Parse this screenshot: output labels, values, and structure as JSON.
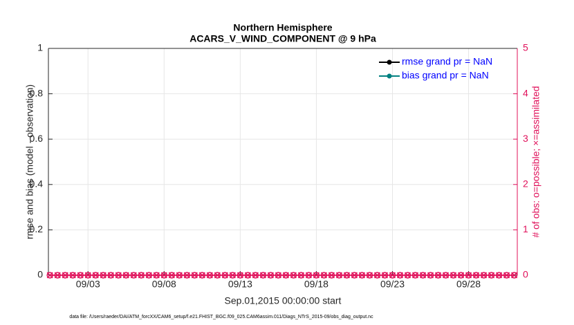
{
  "chart_data": {
    "type": "line",
    "title": "Northern Hemisphere",
    "subtitle": "ACARS_V_WIND_COMPONENT @ 9 hPa",
    "xlabel": "Sep.01,2015 00:00:00 start",
    "ylabel": "rmse and bias (model - observation)",
    "y2label": "# of obs: o=possible; ×=assimilated",
    "note": "data file: /Users/raeder/DAI/ATM_forcXX/CAM6_setup/f.e21.FHIST_BGC.f09_025.CAM6assim.011/Diags_NTrS_2015-09/obs_diag_output.nc",
    "x": [
      0.5,
      1,
      1.5,
      2,
      2.5,
      3,
      3.5,
      4,
      4.5,
      5,
      5.5,
      6,
      6.5,
      7,
      7.5,
      8,
      8.5,
      9,
      9.5,
      10,
      10.5,
      11,
      11.5,
      12,
      12.5,
      13,
      13.5,
      14,
      14.5,
      15,
      15.5,
      16,
      16.5,
      17,
      17.5,
      18,
      18.5,
      19,
      19.5,
      20,
      20.5,
      21,
      21.5,
      22,
      22.5,
      23,
      23.5,
      24,
      24.5,
      25,
      25.5,
      26,
      26.5,
      27,
      27.5,
      28,
      28.5,
      29,
      29.5,
      30,
      30.5,
      31
    ],
    "xlim": [
      0.4,
      31.2
    ],
    "xticks": [
      {
        "value": 3,
        "label": "09/03"
      },
      {
        "value": 8,
        "label": "09/08"
      },
      {
        "value": 13,
        "label": "09/13"
      },
      {
        "value": 18,
        "label": "09/18"
      },
      {
        "value": 23,
        "label": "09/23"
      },
      {
        "value": 28,
        "label": "09/28"
      }
    ],
    "ylim": [
      0,
      1
    ],
    "yticks": [
      0,
      0.2,
      0.4,
      0.6,
      0.8,
      1
    ],
    "y2lim": [
      0,
      5
    ],
    "y2ticks": [
      0,
      1,
      2,
      3,
      4,
      5
    ],
    "y2color": "#e0105a",
    "grid": true,
    "legend": "northeast",
    "legend_text_color": "#0000ff",
    "series": [
      {
        "name": "rmse grand pr = NaN",
        "color": "#000000",
        "marker": "o",
        "values": [
          null,
          null,
          null,
          null,
          null,
          null,
          null,
          null,
          null,
          null,
          null,
          null,
          null,
          null,
          null,
          null,
          null,
          null,
          null,
          null,
          null,
          null,
          null,
          null,
          null,
          null,
          null,
          null,
          null,
          null,
          null,
          null,
          null,
          null,
          null,
          null,
          null,
          null,
          null,
          null,
          null,
          null,
          null,
          null,
          null,
          null,
          null,
          null,
          null,
          null,
          null,
          null,
          null,
          null,
          null,
          null,
          null,
          null,
          null,
          null,
          null,
          null
        ]
      },
      {
        "name": "bias grand pr = NaN",
        "color": "#008080",
        "marker": "o",
        "values": [
          null,
          null,
          null,
          null,
          null,
          null,
          null,
          null,
          null,
          null,
          null,
          null,
          null,
          null,
          null,
          null,
          null,
          null,
          null,
          null,
          null,
          null,
          null,
          null,
          null,
          null,
          null,
          null,
          null,
          null,
          null,
          null,
          null,
          null,
          null,
          null,
          null,
          null,
          null,
          null,
          null,
          null,
          null,
          null,
          null,
          null,
          null,
          null,
          null,
          null,
          null,
          null,
          null,
          null,
          null,
          null,
          null,
          null,
          null,
          null,
          null,
          null
        ]
      },
      {
        "axis": "y2",
        "color": "#e0105a",
        "marker": "o",
        "values": [
          0,
          0,
          0,
          0,
          0,
          0,
          0,
          0,
          0,
          0,
          0,
          0,
          0,
          0,
          0,
          0,
          0,
          0,
          0,
          0,
          0,
          0,
          0,
          0,
          0,
          0,
          0,
          0,
          0,
          0,
          0,
          0,
          0,
          0,
          0,
          0,
          0,
          0,
          0,
          0,
          0,
          0,
          0,
          0,
          0,
          0,
          0,
          0,
          0,
          0,
          0,
          0,
          0,
          0,
          0,
          0,
          0,
          0,
          0,
          0,
          0,
          0
        ]
      },
      {
        "axis": "y2",
        "color": "#e0105a",
        "marker": "x",
        "values": [
          0,
          0,
          0,
          0,
          0,
          0,
          0,
          0,
          0,
          0,
          0,
          0,
          0,
          0,
          0,
          0,
          0,
          0,
          0,
          0,
          0,
          0,
          0,
          0,
          0,
          0,
          0,
          0,
          0,
          0,
          0,
          0,
          0,
          0,
          0,
          0,
          0,
          0,
          0,
          0,
          0,
          0,
          0,
          0,
          0,
          0,
          0,
          0,
          0,
          0,
          0,
          0,
          0,
          0,
          0,
          0,
          0,
          0,
          0,
          0,
          0,
          0
        ]
      }
    ]
  }
}
